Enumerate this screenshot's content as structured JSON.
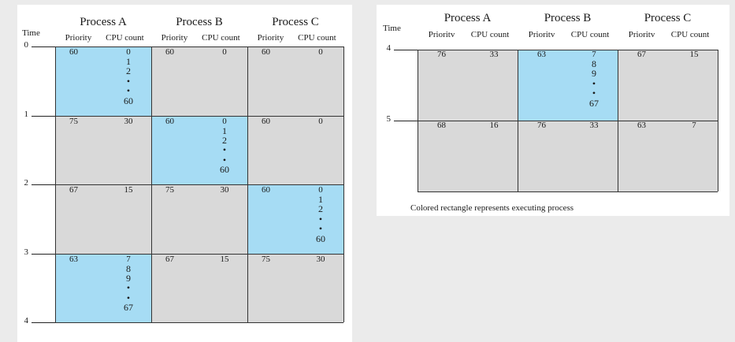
{
  "time_title": "Time",
  "col_header_priority": "Priority",
  "col_header_priority_right": "Prioritv",
  "col_header_cpu": "CPU count",
  "processes": [
    "Process A",
    "Process B",
    "Process C"
  ],
  "left_ticks": [
    "0",
    "1",
    "2",
    "3",
    "4"
  ],
  "right_ticks": [
    "4",
    "5"
  ],
  "left_rows": [
    {
      "exec": 0,
      "cells": [
        {
          "p": "60",
          "c": "0",
          "seq": [
            "1",
            "2",
            "•",
            "•",
            "60"
          ]
        },
        {
          "p": "60",
          "c": "0"
        },
        {
          "p": "60",
          "c": "0"
        }
      ]
    },
    {
      "exec": 1,
      "cells": [
        {
          "p": "75",
          "c": "30"
        },
        {
          "p": "60",
          "c": "0",
          "seq": [
            "1",
            "2",
            "•",
            "•",
            "60"
          ]
        },
        {
          "p": "60",
          "c": "0"
        }
      ]
    },
    {
      "exec": 2,
      "cells": [
        {
          "p": "67",
          "c": "15"
        },
        {
          "p": "75",
          "c": "30"
        },
        {
          "p": "60",
          "c": "0",
          "seq": [
            "1",
            "2",
            "•",
            "•",
            "60"
          ]
        }
      ]
    },
    {
      "exec": 0,
      "cells": [
        {
          "p": "63",
          "c": "7",
          "seq": [
            "8",
            "9",
            "•",
            "•",
            "67"
          ]
        },
        {
          "p": "67",
          "c": "15"
        },
        {
          "p": "75",
          "c": "30"
        }
      ]
    }
  ],
  "right_rows": [
    {
      "exec": 1,
      "cells": [
        {
          "p": "76",
          "c": "33"
        },
        {
          "p": "63",
          "c": "7",
          "seq": [
            "8",
            "9",
            "•",
            "•",
            "67"
          ]
        },
        {
          "p": "67",
          "c": "15"
        }
      ]
    },
    {
      "exec": -1,
      "cells": [
        {
          "p": "68",
          "c": "16"
        },
        {
          "p": "76",
          "c": "33"
        },
        {
          "p": "63",
          "c": "7"
        }
      ]
    }
  ],
  "caption": "Colored rectangle represents executing process",
  "colors": {
    "executing": "#a6dcf4",
    "idle": "#d9d9d9",
    "grid": "#333333"
  }
}
